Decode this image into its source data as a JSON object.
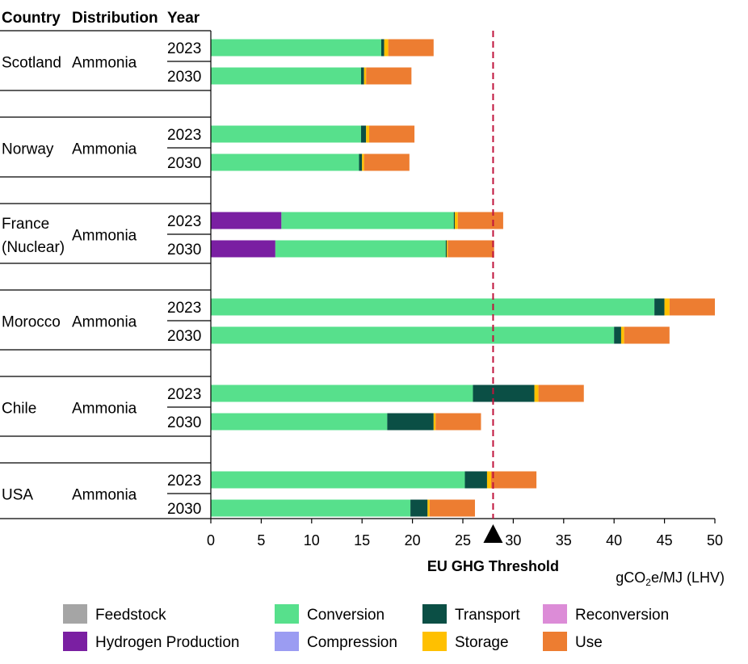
{
  "chart_data": {
    "type": "bar",
    "orientation": "horizontal",
    "stacked": true,
    "headers": {
      "country": "Country",
      "distribution": "Distribution",
      "year": "Year"
    },
    "groups": [
      {
        "country": [
          "Scotland"
        ],
        "distribution": "Ammonia",
        "rows": [
          {
            "year": "2023",
            "segments": {
              "Conversion": 16.9,
              "Transport": 0.3,
              "Storage": 0.4,
              "Use": 4.5
            }
          },
          {
            "year": "2030",
            "segments": {
              "Conversion": 14.9,
              "Transport": 0.3,
              "Storage": 0.2,
              "Use": 4.5
            }
          }
        ]
      },
      {
        "country": [
          "Norway"
        ],
        "distribution": "Ammonia",
        "rows": [
          {
            "year": "2023",
            "segments": {
              "Conversion": 14.9,
              "Transport": 0.5,
              "Storage": 0.3,
              "Use": 4.5
            }
          },
          {
            "year": "2030",
            "segments": {
              "Conversion": 14.7,
              "Transport": 0.3,
              "Storage": 0.2,
              "Use": 4.5
            }
          }
        ]
      },
      {
        "country": [
          "France",
          "(Nuclear)"
        ],
        "distribution": "Ammonia",
        "rows": [
          {
            "year": "2023",
            "segments": {
              "Hydrogen Production": 7.0,
              "Conversion": 17.1,
              "Transport": 0.1,
              "Storage": 0.3,
              "Use": 4.5
            }
          },
          {
            "year": "2030",
            "segments": {
              "Hydrogen Production": 6.4,
              "Conversion": 16.9,
              "Transport": 0.1,
              "Storage": 0.1,
              "Use": 4.6
            }
          }
        ]
      },
      {
        "country": [
          "Morocco"
        ],
        "distribution": "Ammonia",
        "rows": [
          {
            "year": "2023",
            "segments": {
              "Conversion": 44.0,
              "Transport": 1.0,
              "Storage": 0.5,
              "Use": 4.5
            }
          },
          {
            "year": "2030",
            "segments": {
              "Conversion": 40.0,
              "Transport": 0.7,
              "Storage": 0.3,
              "Use": 4.5
            }
          }
        ]
      },
      {
        "country": [
          "Chile"
        ],
        "distribution": "Ammonia",
        "rows": [
          {
            "year": "2023",
            "segments": {
              "Conversion": 26.0,
              "Transport": 6.1,
              "Storage": 0.4,
              "Use": 4.5
            }
          },
          {
            "year": "2030",
            "segments": {
              "Conversion": 17.5,
              "Transport": 4.6,
              "Storage": 0.2,
              "Use": 4.5
            }
          }
        ]
      },
      {
        "country": [
          "USA"
        ],
        "distribution": "Ammonia",
        "rows": [
          {
            "year": "2023",
            "segments": {
              "Conversion": 25.2,
              "Transport": 2.2,
              "Storage": 0.4,
              "Use": 4.5
            }
          },
          {
            "year": "2030",
            "segments": {
              "Conversion": 19.8,
              "Transport": 1.7,
              "Storage": 0.2,
              "Use": 4.5
            }
          }
        ]
      }
    ],
    "xlim": [
      0,
      50
    ],
    "xticks": [
      "0",
      "5",
      "10",
      "15",
      "20",
      "25",
      "30",
      "35",
      "40",
      "45",
      "50"
    ],
    "xlabel_parts": [
      "gCO",
      "2",
      "e/MJ  (LHV)"
    ],
    "threshold": {
      "value": 28,
      "label": "EU GHG Threshold",
      "color": "#c0143c"
    },
    "legend": [
      {
        "name": "Feedstock",
        "color": "#a5a5a5"
      },
      {
        "name": "Conversion",
        "color": "#57e08c"
      },
      {
        "name": "Transport",
        "color": "#0b4f45"
      },
      {
        "name": "Reconversion",
        "color": "#dc8cd7"
      },
      {
        "name": "Hydrogen  Production",
        "key": "Hydrogen Production",
        "color": "#7a1fa2"
      },
      {
        "name": "Compression",
        "color": "#9b9cf2"
      },
      {
        "name": "Storage",
        "color": "#ffc000"
      },
      {
        "name": "Use",
        "color": "#ed7d31"
      }
    ],
    "stack_order": [
      "Feedstock",
      "Hydrogen Production",
      "Conversion",
      "Compression",
      "Transport",
      "Storage",
      "Reconversion",
      "Use"
    ],
    "grid": false
  }
}
